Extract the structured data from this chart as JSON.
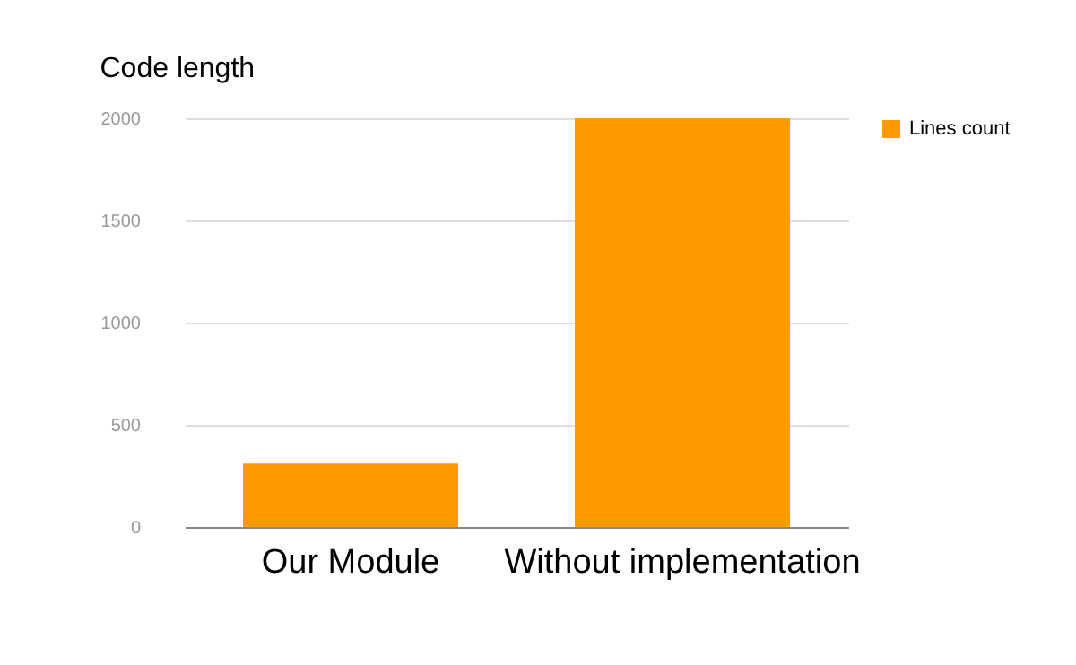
{
  "chart_data": {
    "type": "bar",
    "title": "Code length",
    "categories": [
      "Our Module",
      "Without implementation"
    ],
    "series": [
      {
        "name": "Lines count",
        "color": "#ff9900",
        "values": [
          310,
          2000
        ]
      }
    ],
    "ylim": [
      0,
      2000
    ],
    "yticks": [
      0,
      500,
      1000,
      1500,
      2000
    ],
    "grid": "y",
    "legend": "top right"
  }
}
